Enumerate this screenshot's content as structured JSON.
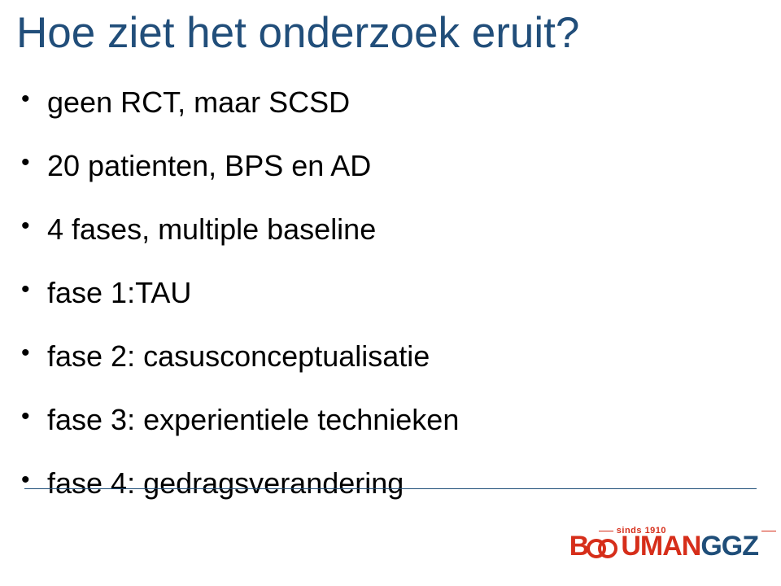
{
  "title": "Hoe ziet het onderzoek eruit?",
  "bullets": [
    "geen RCT, maar SCSD",
    "20 patienten, BPS en AD",
    "4 fases, multiple baseline",
    "fase 1:TAU",
    "fase 2: casusconceptualisatie",
    "fase 3: experientiele technieken",
    "fase 4: gedragsverandering"
  ],
  "logo": {
    "sinds": "sinds 1910",
    "name_part1": "B",
    "name_part2": "UMAN",
    "name_part3": "GGZ"
  },
  "colors": {
    "title": "#214e7a",
    "text": "#000000",
    "accent_red": "#d62e1a",
    "accent_blue": "#1f4e79",
    "divider": "#1f4e79",
    "background": "#ffffff"
  }
}
